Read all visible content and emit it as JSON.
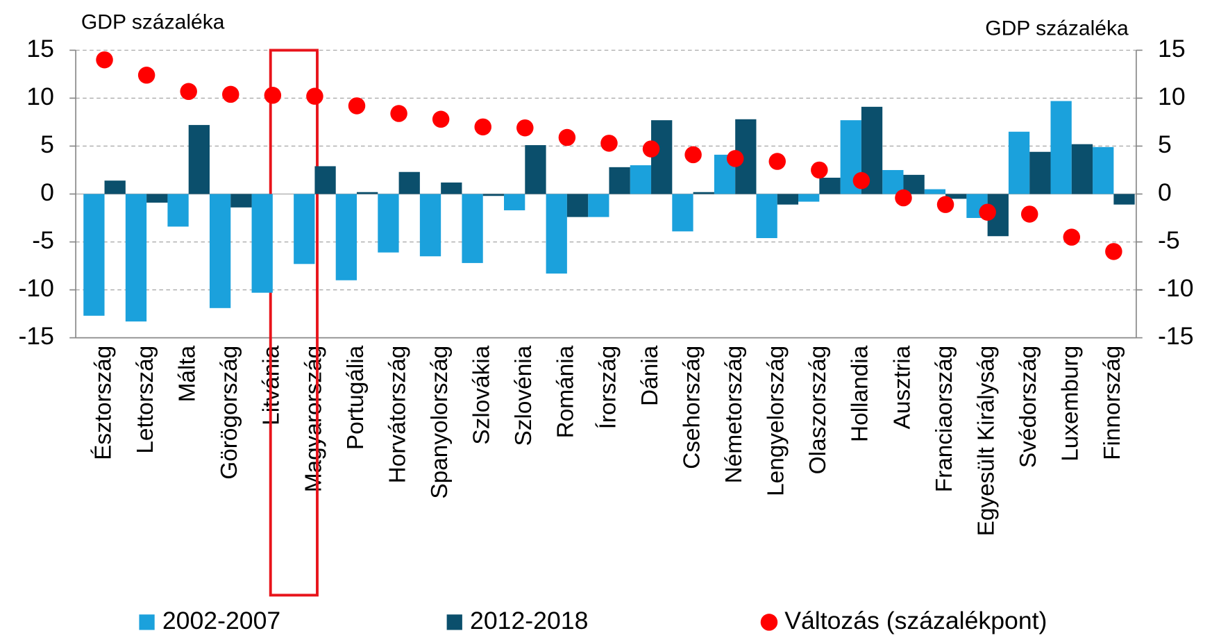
{
  "chart_data": {
    "type": "bar",
    "ylabel": "GDP százaléka",
    "y2label": "GDP százaléka",
    "categories": [
      "Észtország",
      "Lettország",
      "Málta",
      "Görögország",
      "Litvánia",
      "Magyarország",
      "Portugália",
      "Horvátország",
      "Spanyolország",
      "Szlovákia",
      "Szlovénia",
      "Románia",
      "Írország",
      "Dánia",
      "Csehország",
      "Németország",
      "Lengyelország",
      "Olaszország",
      "Hollandia",
      "Ausztria",
      "Franciaország",
      "Egyesült Királyság",
      "Svédország",
      "Luxemburg",
      "Finnország"
    ],
    "series": [
      {
        "name": "2002-2007",
        "type": "bar",
        "color": "#1ba1dc",
        "values": [
          -12.7,
          -13.3,
          -3.4,
          -11.9,
          -10.3,
          -7.3,
          -9.0,
          -6.1,
          -6.5,
          -7.2,
          -1.7,
          -8.3,
          -2.4,
          3.0,
          -3.9,
          4.1,
          -4.6,
          -0.8,
          7.7,
          2.5,
          0.5,
          -2.5,
          6.5,
          9.7,
          4.9
        ]
      },
      {
        "name": "2012-2018",
        "type": "bar",
        "color": "#0b4f6c",
        "values": [
          1.4,
          -0.9,
          7.2,
          -1.4,
          0,
          2.9,
          0.2,
          2.3,
          1.2,
          -0.2,
          5.1,
          -2.4,
          2.8,
          7.7,
          0.2,
          7.8,
          -1.1,
          1.7,
          9.1,
          2.0,
          -0.5,
          -4.4,
          4.4,
          5.2,
          -1.1
        ]
      },
      {
        "name": "Változás (százalékpont)",
        "type": "scatter",
        "axis": "y2",
        "color": "#ff0000",
        "values": [
          14.0,
          12.4,
          10.7,
          10.4,
          10.3,
          10.2,
          9.2,
          8.4,
          7.8,
          7.0,
          6.9,
          5.9,
          5.3,
          4.7,
          4.1,
          3.7,
          3.4,
          2.5,
          1.4,
          -0.4,
          -1.1,
          -1.9,
          -2.1,
          -4.5,
          -6.0
        ]
      }
    ],
    "ylim": [
      -15,
      15
    ],
    "yticks": [
      -15,
      -10,
      -5,
      0,
      5,
      10,
      15
    ],
    "y2lim": [
      -15,
      15
    ],
    "y2ticks": [
      -15,
      -10,
      -5,
      0,
      5,
      10,
      15
    ],
    "grid": true,
    "legend": "bottom"
  }
}
